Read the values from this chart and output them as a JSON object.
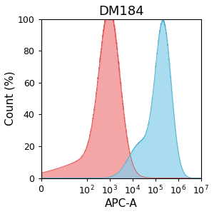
{
  "title": "DM184",
  "xlabel": "APC-A",
  "ylabel": "Count (%)",
  "xlim_log": [
    0,
    7
  ],
  "ylim": [
    0,
    100
  ],
  "yticks": [
    0,
    20,
    40,
    60,
    80,
    100
  ],
  "xticks_log": [
    0,
    2,
    3,
    4,
    5,
    6,
    7
  ],
  "red_fill": "#F08080",
  "red_edge": "#E05050",
  "blue_fill": "#87CEEB",
  "blue_edge": "#4AACCC",
  "background": "#FFFFFF",
  "red_peak_log": 3.0,
  "red_peak_height": 100,
  "red_spread": 0.45,
  "blue_peak_log": 5.35,
  "blue_peak_height": 95,
  "blue_spread": 0.35,
  "title_fontsize": 13,
  "axis_label_fontsize": 11,
  "tick_fontsize": 9
}
